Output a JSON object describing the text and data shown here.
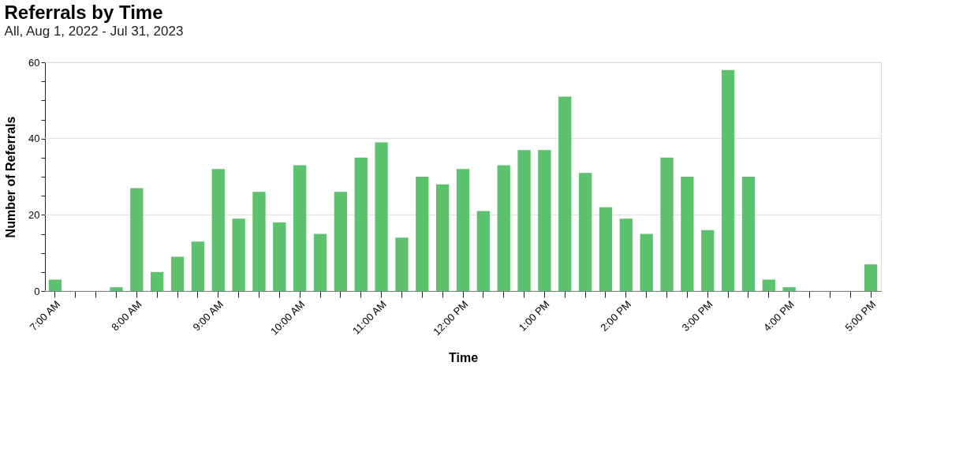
{
  "chart_data": {
    "type": "bar",
    "title": "Referrals by Time",
    "subtitle": "All, Aug 1, 2022 - Jul 31, 2023",
    "xlabel": "Time",
    "ylabel": "Number of Referrals",
    "categories": [
      "7:00 AM",
      null,
      null,
      null,
      "8:00 AM",
      null,
      null,
      null,
      "9:00 AM",
      null,
      null,
      null,
      "10:00 AM",
      null,
      null,
      null,
      "11:00 AM",
      null,
      null,
      null,
      "12:00 PM",
      null,
      null,
      null,
      "1:00 PM",
      null,
      null,
      null,
      "2:00 PM",
      null,
      null,
      null,
      "3:00 PM",
      null,
      null,
      null,
      "4:00 PM",
      null,
      null,
      null,
      "5:00 PM"
    ],
    "values": [
      3,
      0,
      0,
      1,
      27,
      5,
      9,
      13,
      32,
      19,
      26,
      18,
      33,
      15,
      26,
      35,
      39,
      14,
      30,
      28,
      32,
      21,
      33,
      37,
      37,
      51,
      31,
      22,
      19,
      15,
      35,
      30,
      16,
      58,
      30,
      3,
      1,
      0,
      0,
      0,
      7
    ],
    "color": "#5cc26e",
    "ylim": [
      0,
      60
    ],
    "yticks": [
      0,
      {
        "value": 5,
        "label": null
      },
      {
        "value": 10,
        "label": null
      },
      {
        "value": 15,
        "label": null
      },
      20,
      {
        "value": 25,
        "label": null
      },
      {
        "value": 30,
        "label": null
      },
      {
        "value": 35,
        "label": null
      },
      40,
      {
        "value": 45,
        "label": null
      },
      {
        "value": 50,
        "label": null
      },
      {
        "value": 55,
        "label": null
      },
      60
    ],
    "grid": "y"
  }
}
